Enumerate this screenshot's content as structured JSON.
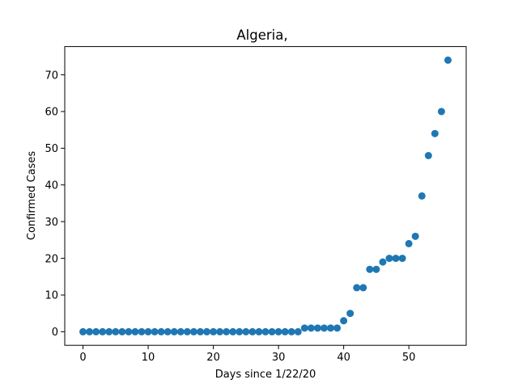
{
  "chart_data": {
    "type": "scatter",
    "title": "Algeria,",
    "xlabel": "Days since 1/22/20",
    "ylabel": "Confirmed Cases",
    "xlim": [
      -2.8,
      58.8
    ],
    "ylim": [
      -3.7,
      77.7
    ],
    "xticks": [
      0,
      10,
      20,
      30,
      40,
      50
    ],
    "yticks": [
      0,
      10,
      20,
      30,
      40,
      50,
      60,
      70
    ],
    "grid": false,
    "color": "#1f77b4",
    "x": [
      0,
      1,
      2,
      3,
      4,
      5,
      6,
      7,
      8,
      9,
      10,
      11,
      12,
      13,
      14,
      15,
      16,
      17,
      18,
      19,
      20,
      21,
      22,
      23,
      24,
      25,
      26,
      27,
      28,
      29,
      30,
      31,
      32,
      33,
      34,
      35,
      36,
      37,
      38,
      39,
      40,
      41,
      42,
      43,
      44,
      45,
      46,
      47,
      48,
      49,
      50,
      51,
      52,
      53,
      54,
      55,
      56
    ],
    "y": [
      0,
      0,
      0,
      0,
      0,
      0,
      0,
      0,
      0,
      0,
      0,
      0,
      0,
      0,
      0,
      0,
      0,
      0,
      0,
      0,
      0,
      0,
      0,
      0,
      0,
      0,
      0,
      0,
      0,
      0,
      0,
      0,
      0,
      0,
      1,
      1,
      1,
      1,
      1,
      1,
      3,
      5,
      12,
      12,
      17,
      17,
      19,
      20,
      20,
      20,
      24,
      26,
      37,
      48,
      54,
      60,
      74
    ]
  }
}
